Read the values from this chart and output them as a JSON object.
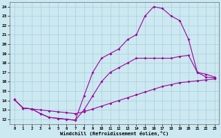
{
  "xlabel": "Windchill (Refroidissement éolien,°C)",
  "bg_color": "#cce8f0",
  "line_color": "#990099",
  "marker": "D",
  "markersize": 2,
  "linewidth": 0.8,
  "xlim": [
    -0.5,
    23.5
  ],
  "ylim": [
    11.5,
    24.5
  ],
  "xticks": [
    0,
    1,
    2,
    3,
    4,
    5,
    6,
    7,
    8,
    9,
    10,
    11,
    12,
    13,
    14,
    15,
    16,
    17,
    18,
    19,
    20,
    21,
    22,
    23
  ],
  "yticks": [
    12,
    13,
    14,
    15,
    16,
    17,
    18,
    19,
    20,
    21,
    22,
    23,
    24
  ],
  "line1_x": [
    0,
    1,
    2,
    3,
    4,
    5,
    6,
    7,
    8,
    9,
    10,
    11,
    12,
    13,
    14,
    15,
    16,
    17,
    18,
    19,
    20,
    21,
    22,
    23
  ],
  "line1_y": [
    14.1,
    13.2,
    13.1,
    13.0,
    12.9,
    12.8,
    12.7,
    12.6,
    12.8,
    13.1,
    13.4,
    13.7,
    14.0,
    14.3,
    14.6,
    14.9,
    15.2,
    15.5,
    15.7,
    15.9,
    16.0,
    16.1,
    16.2,
    16.3
  ],
  "line2_x": [
    0,
    1,
    2,
    3,
    4,
    5,
    6,
    7,
    8,
    9,
    10,
    11,
    12,
    13,
    14,
    15,
    16,
    17,
    18,
    19,
    20,
    21,
    22,
    23
  ],
  "line2_y": [
    14.1,
    13.2,
    13.1,
    12.6,
    12.2,
    12.1,
    12.0,
    11.9,
    13.0,
    14.5,
    16.0,
    17.0,
    17.5,
    18.0,
    18.5,
    18.5,
    18.5,
    18.5,
    18.5,
    18.7,
    18.8,
    17.0,
    16.8,
    16.5
  ],
  "line3_x": [
    0,
    1,
    2,
    3,
    4,
    5,
    6,
    7,
    8,
    9,
    10,
    11,
    12,
    13,
    14,
    15,
    16,
    17,
    18,
    19,
    20,
    21,
    22,
    23
  ],
  "line3_y": [
    14.1,
    13.2,
    13.1,
    12.6,
    12.2,
    12.1,
    12.0,
    11.9,
    14.5,
    17.0,
    18.5,
    19.0,
    19.5,
    20.5,
    21.0,
    23.0,
    24.0,
    23.8,
    23.0,
    22.5,
    20.5,
    17.0,
    16.5,
    16.4
  ]
}
